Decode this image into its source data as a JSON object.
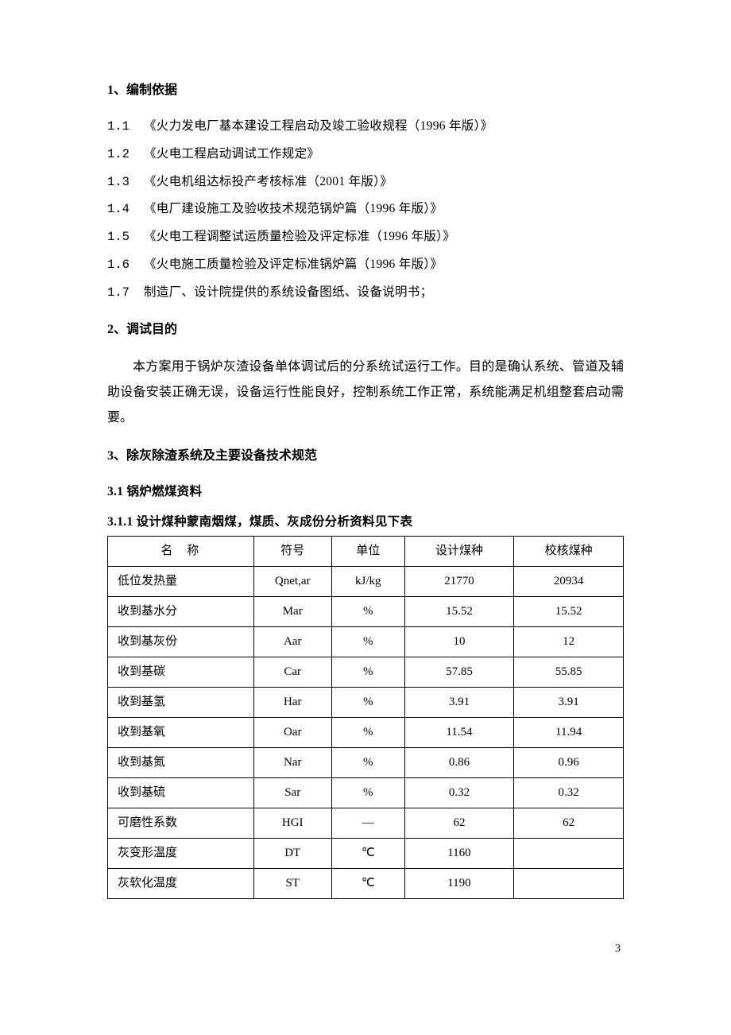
{
  "sections": {
    "s1": {
      "heading": "1、编制依据",
      "items": [
        {
          "num": "1.1",
          "text": "《火力发电厂基本建设工程启动及竣工验收规程（1996 年版）》"
        },
        {
          "num": "1.2",
          "text": "《火电工程启动调试工作规定》"
        },
        {
          "num": "1.3",
          "text": "《火电机组达标投产考核标准（2001 年版）》"
        },
        {
          "num": "1.4",
          "text": "《电厂建设施工及验收技术规范锅炉篇（1996 年版）》"
        },
        {
          "num": "1.5",
          "text": "《火电工程调整试运质量检验及评定标准（1996 年版）》"
        },
        {
          "num": "1.6",
          "text": "《火电施工质量检验及评定标准锅炉篇（1996 年版）》"
        },
        {
          "num": "1.7",
          "text": "制造厂、设计院提供的系统设备图纸、设备说明书；"
        }
      ]
    },
    "s2": {
      "heading": "2、调试目的",
      "paragraph": "本方案用于锅炉灰渣设备单体调试后的分系统试运行工作。目的是确认系统、管道及辅助设备安装正确无误，设备运行性能良好，控制系统工作正常，系统能满足机组整套启动需要。"
    },
    "s3": {
      "heading": "3、除灰除渣系统及主要设备技术规范",
      "sub1": "3.1 锅炉燃煤资料",
      "sub2": "3.1.1 设计煤种蒙南烟煤，煤质、灰成份分析资料见下表"
    }
  },
  "table": {
    "columns": [
      "名称",
      "符号",
      "单位",
      "设计煤种",
      "校核煤种"
    ],
    "rows": [
      {
        "name": "低位发热量",
        "symbol": "Qnet,ar",
        "unit": "kJ/kg",
        "design": "21770",
        "check": "20934"
      },
      {
        "name": "收到基水分",
        "symbol": "Mar",
        "unit": "%",
        "design": "15.52",
        "check": "15.52"
      },
      {
        "name": "收到基灰份",
        "symbol": "Aar",
        "unit": "%",
        "design": "10",
        "check": "12"
      },
      {
        "name": "收到基碳",
        "symbol": "Car",
        "unit": "%",
        "design": "57.85",
        "check": "55.85"
      },
      {
        "name": "收到基氢",
        "symbol": "Har",
        "unit": "%",
        "design": "3.91",
        "check": "3.91"
      },
      {
        "name": "收到基氧",
        "symbol": "Oar",
        "unit": "%",
        "design": "11.54",
        "check": "11.94"
      },
      {
        "name": "收到基氮",
        "symbol": "Nar",
        "unit": "%",
        "design": "0.86",
        "check": "0.96"
      },
      {
        "name": "收到基硫",
        "symbol": "Sar",
        "unit": "%",
        "design": "0.32",
        "check": "0.32"
      },
      {
        "name": "可磨性系数",
        "symbol": "HGI",
        "unit": "—",
        "design": "62",
        "check": "62"
      },
      {
        "name": "灰变形温度",
        "symbol": "DT",
        "unit": "℃",
        "design": "1160",
        "check": ""
      },
      {
        "name": "灰软化温度",
        "symbol": "ST",
        "unit": "℃",
        "design": "1190",
        "check": ""
      }
    ]
  },
  "page_number": "3"
}
